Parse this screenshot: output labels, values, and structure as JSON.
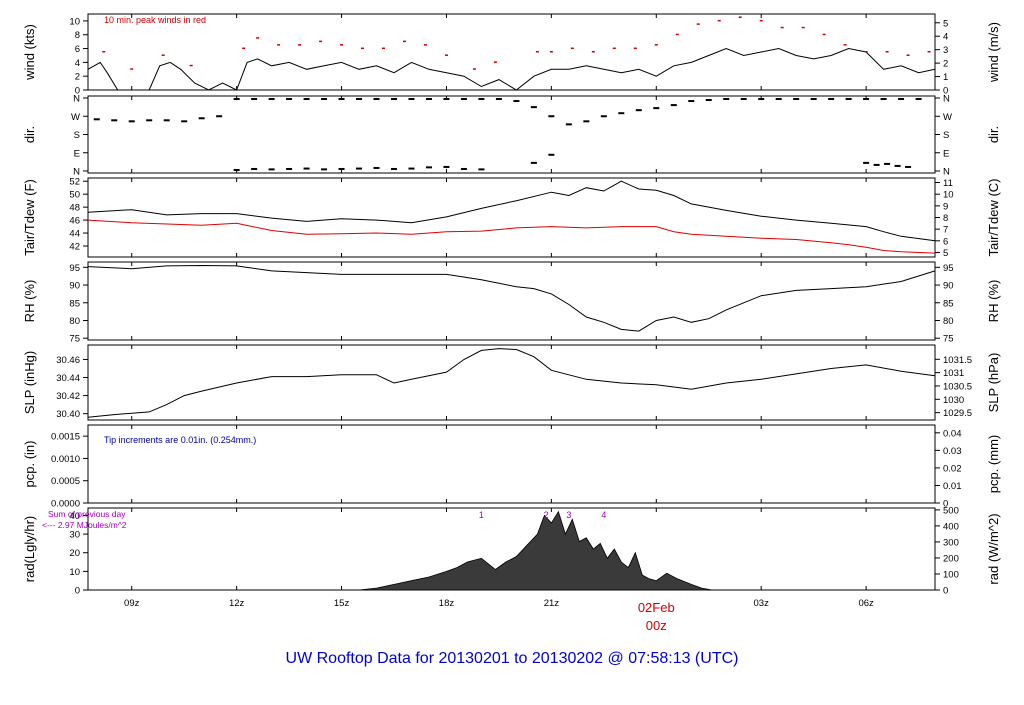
{
  "title": "UW Rooftop Data for 20130201  to  20130202 @ 07:58:13  (UTC)",
  "colors": {
    "axis": "#000000",
    "wind_peak": "#cc0000",
    "dewpoint": "#e00000",
    "note_blue": "#00009c",
    "note_purple": "#a000c0",
    "title_blue": "#0000d0",
    "date_marker": "#d00000"
  },
  "time_axis": {
    "start_hour": 7.75,
    "end_hour": 31.97,
    "ticks": [
      {
        "hour": 9,
        "label": "09z"
      },
      {
        "hour": 12,
        "label": "12z"
      },
      {
        "hour": 15,
        "label": "15z"
      },
      {
        "hour": 18,
        "label": "18z"
      },
      {
        "hour": 21,
        "label": "21z"
      },
      {
        "hour": 24,
        "label": ""
      },
      {
        "hour": 27,
        "label": "03z"
      },
      {
        "hour": 30,
        "label": "06z"
      }
    ],
    "date_marker": {
      "hour": 24,
      "date": "02Feb",
      "label": "00z"
    }
  },
  "chart_data": [
    {
      "type": "line",
      "panel": "wind",
      "ylabel_left": "wind (kts)",
      "ylabel_right": "wind (m/s)",
      "ylim": [
        0,
        11
      ],
      "ticks_left": [
        "0",
        "2",
        "4",
        "6",
        "8",
        "10"
      ],
      "ticks_right": [
        "0",
        "1",
        "2",
        "3",
        "4",
        "5"
      ],
      "right_conversion": 0.514,
      "annotation": "10 min. peak winds in red",
      "series": [
        {
          "name": "wind",
          "x": [
            7.75,
            8.1,
            8.3,
            8.6,
            8.9,
            9.2,
            9.5,
            9.8,
            10.1,
            10.4,
            10.8,
            11.2,
            11.6,
            12.0,
            12.3,
            12.6,
            13.0,
            13.5,
            14.0,
            14.5,
            15.0,
            15.5,
            16.0,
            16.5,
            17.0,
            17.5,
            18.0,
            18.5,
            19.0,
            19.5,
            20.0,
            20.5,
            21.0,
            21.5,
            22.0,
            22.5,
            23.0,
            23.5,
            24.0,
            24.5,
            25.0,
            25.5,
            26.0,
            26.5,
            27.0,
            27.5,
            28.0,
            28.5,
            29.0,
            29.5,
            30.0,
            30.5,
            31.0,
            31.5,
            31.97
          ],
          "y": [
            3,
            4,
            2.5,
            0,
            0,
            0,
            0,
            3.5,
            4,
            3,
            1,
            0,
            1,
            0,
            4,
            4.5,
            3.5,
            4,
            3,
            3.5,
            4,
            3,
            3.5,
            2.5,
            4,
            3,
            2.5,
            2,
            0.5,
            1.5,
            0,
            2,
            3,
            3,
            3.5,
            3,
            2.5,
            3,
            2,
            3.5,
            4,
            5,
            6,
            5,
            5.5,
            6,
            5,
            4.5,
            5,
            6,
            5.5,
            3,
            3.5,
            2.5,
            3
          ]
        },
        {
          "name": "peak",
          "x": [
            8.2,
            9.0,
            9.9,
            10.7,
            12.2,
            12.6,
            13.2,
            13.8,
            14.4,
            15.0,
            15.6,
            16.2,
            16.8,
            17.4,
            18.0,
            18.8,
            19.4,
            20.6,
            21.0,
            21.6,
            22.2,
            22.8,
            23.4,
            24.0,
            24.6,
            25.2,
            25.8,
            26.4,
            27.0,
            27.6,
            28.2,
            28.8,
            29.4,
            30.0,
            30.6,
            31.2,
            31.8
          ],
          "y": [
            5.5,
            3,
            5,
            3.5,
            6,
            7.5,
            6.5,
            6.5,
            7,
            6.5,
            6,
            6,
            7,
            6.5,
            5,
            3,
            4,
            5.5,
            5.5,
            6,
            5.5,
            6,
            6,
            6.5,
            8,
            9.5,
            10,
            10.5,
            10,
            9,
            9,
            8,
            6.5,
            5.5,
            5.5,
            5,
            5.5
          ]
        }
      ]
    },
    {
      "type": "scatter",
      "panel": "direction",
      "ylabel_left": "dir.",
      "ylabel_right": "dir.",
      "ticks_left": [
        "N",
        "E",
        "S",
        "W",
        "N"
      ],
      "ticks_right": [
        "N",
        "E",
        "S",
        "W",
        "N"
      ],
      "ylim": [
        0,
        360
      ],
      "x": [
        8.0,
        8.5,
        9.0,
        9.5,
        10.0,
        10.5,
        11.0,
        11.5,
        12.0,
        12.5,
        13.0,
        13.5,
        14.0,
        14.5,
        15.0,
        15.5,
        16.0,
        16.5,
        17.0,
        17.5,
        18.0,
        18.5,
        19.0,
        19.5,
        20.0,
        20.5,
        21.0,
        21.5,
        22.0,
        22.5,
        23.0,
        23.5,
        24.0,
        24.5,
        25.0,
        25.5,
        26.0,
        26.5,
        27.0,
        27.5,
        28.0,
        28.5,
        29.0,
        29.5,
        30.0,
        30.5,
        31.0,
        31.5
      ],
      "y": [
        255,
        250,
        245,
        250,
        250,
        245,
        260,
        270,
        355,
        355,
        355,
        355,
        355,
        355,
        355,
        355,
        355,
        355,
        355,
        355,
        355,
        355,
        355,
        355,
        345,
        315,
        270,
        230,
        245,
        270,
        285,
        300,
        310,
        325,
        345,
        350,
        355,
        355,
        355,
        355,
        355,
        355,
        355,
        355,
        355,
        355,
        355,
        355
      ],
      "x2": [
        12.0,
        12.5,
        13.0,
        13.5,
        14.0,
        14.5,
        15.0,
        15.5,
        16.0,
        16.5,
        17.0,
        17.5,
        18.0,
        18.5,
        19.0,
        20.5,
        21.0,
        30.0,
        30.3,
        30.6,
        30.9,
        31.2
      ],
      "y2": [
        5,
        10,
        8,
        10,
        12,
        8,
        10,
        12,
        15,
        10,
        12,
        18,
        20,
        10,
        8,
        40,
        80,
        40,
        30,
        35,
        25,
        20
      ]
    },
    {
      "type": "line",
      "panel": "temperature",
      "ylabel_left": "Tair/Tdew (F)",
      "ylabel_right": "Tair/Tdew (C)",
      "ylim": [
        40.3,
        52.5
      ],
      "ticks_left": [
        "42",
        "44",
        "46",
        "48",
        "50",
        "52"
      ],
      "ticks_right": [
        "5",
        "6",
        "7",
        "8",
        "9",
        "10",
        "11"
      ],
      "series": [
        {
          "name": "Tair",
          "x": [
            7.75,
            9.0,
            10.0,
            11.0,
            12.0,
            13.0,
            14.0,
            15.0,
            16.0,
            17.0,
            18.0,
            19.0,
            20.0,
            21.0,
            21.5,
            22.0,
            22.5,
            23.0,
            23.5,
            24.0,
            24.5,
            25.0,
            26.0,
            27.0,
            28.0,
            29.0,
            30.0,
            30.5,
            31.0,
            31.97
          ],
          "y": [
            47.2,
            47.6,
            46.8,
            47.0,
            47.0,
            46.3,
            45.8,
            46.2,
            46.0,
            45.6,
            46.5,
            47.8,
            49.0,
            50.3,
            49.8,
            51.0,
            50.5,
            52.0,
            50.8,
            50.6,
            49.8,
            48.5,
            47.5,
            46.6,
            46.0,
            45.5,
            45.0,
            44.2,
            43.5,
            42.8
          ]
        },
        {
          "name": "Tdew",
          "x": [
            7.75,
            9.0,
            10.0,
            11.0,
            12.0,
            13.0,
            14.0,
            15.0,
            16.0,
            17.0,
            18.0,
            19.0,
            20.0,
            21.0,
            22.0,
            23.0,
            24.0,
            24.5,
            25.0,
            26.0,
            27.0,
            28.0,
            29.0,
            29.5,
            30.0,
            30.5,
            31.0,
            31.97
          ],
          "y": [
            46.0,
            45.6,
            45.4,
            45.2,
            45.5,
            44.4,
            43.8,
            43.9,
            44.0,
            43.8,
            44.2,
            44.3,
            44.8,
            45.0,
            44.8,
            45.0,
            45.0,
            44.2,
            43.8,
            43.5,
            43.2,
            43.0,
            42.5,
            42.2,
            41.8,
            41.3,
            41.1,
            40.9
          ]
        }
      ]
    },
    {
      "type": "line",
      "panel": "rh",
      "ylabel_left": "RH (%)",
      "ylabel_right": "RH (%)",
      "ylim": [
        74.5,
        96.5
      ],
      "ticks_left": [
        "75",
        "80",
        "85",
        "90",
        "95"
      ],
      "ticks_right": [
        "75",
        "80",
        "85",
        "90",
        "95"
      ],
      "series": [
        {
          "name": "RH",
          "x": [
            7.75,
            9.0,
            10.0,
            11.0,
            12.0,
            13.0,
            14.0,
            15.0,
            16.0,
            17.0,
            18.0,
            19.0,
            20.0,
            20.5,
            21.0,
            21.5,
            22.0,
            22.5,
            23.0,
            23.5,
            24.0,
            24.5,
            25.0,
            25.5,
            26.0,
            27.0,
            28.0,
            29.0,
            30.0,
            31.0,
            31.97
          ],
          "y": [
            95.2,
            94.6,
            95.4,
            95.5,
            95.4,
            94.0,
            93.5,
            93.0,
            93.0,
            93.0,
            93.0,
            91.5,
            89.5,
            89.0,
            87.5,
            84.5,
            81.0,
            79.5,
            77.5,
            77.0,
            80.0,
            81.0,
            79.5,
            80.5,
            83.0,
            87.0,
            88.5,
            89.0,
            89.5,
            91.0,
            94.0
          ]
        }
      ]
    },
    {
      "type": "line",
      "panel": "pressure",
      "ylabel_left": "SLP (inHg)",
      "ylabel_right": "SLP (hPa)",
      "ylim": [
        30.393,
        30.476
      ],
      "ticks_left": [
        "30.40",
        "30.42",
        "30.44",
        "30.46"
      ],
      "ticks_right": [
        "1029.5",
        "1030",
        "1030.5",
        "1031",
        "1031.5"
      ],
      "series": [
        {
          "name": "SLP",
          "x": [
            7.75,
            8.5,
            9.5,
            10.0,
            10.5,
            11.0,
            12.0,
            13.0,
            14.0,
            15.0,
            16.0,
            16.5,
            17.0,
            18.0,
            18.5,
            19.0,
            19.5,
            20.0,
            20.5,
            21.0,
            22.0,
            23.0,
            24.0,
            25.0,
            26.0,
            27.0,
            28.0,
            29.0,
            30.0,
            31.0,
            31.97
          ],
          "y": [
            30.396,
            30.399,
            30.402,
            30.41,
            30.42,
            30.425,
            30.434,
            30.441,
            30.441,
            30.443,
            30.443,
            30.434,
            30.438,
            30.446,
            30.46,
            30.47,
            30.472,
            30.471,
            30.463,
            30.448,
            30.438,
            30.434,
            30.432,
            30.427,
            30.434,
            30.438,
            30.444,
            30.45,
            30.454,
            30.447,
            30.442
          ]
        }
      ]
    },
    {
      "type": "line",
      "panel": "precipitation",
      "ylabel_left": "pcp. (in)",
      "ylabel_right": "pcp. (mm)",
      "ylim": [
        0,
        0.00175
      ],
      "ticks_left": [
        "0.0000",
        "0.0005",
        "0.0010",
        "0.0015"
      ],
      "ticks_right": [
        "0",
        "0.01",
        "0.02",
        "0.03",
        "0.04"
      ],
      "annotation": "Tip increments are 0.01in. (0.254mm.)",
      "series": [
        {
          "name": "pcp",
          "x": [
            7.75,
            31.97
          ],
          "y": [
            0,
            0
          ]
        }
      ]
    },
    {
      "type": "area",
      "panel": "radiation",
      "ylabel_left": "rad(Lgly/hr)",
      "ylabel_right": "rad (W/m^2)",
      "ylim": [
        0,
        44
      ],
      "ticks_left": [
        "0",
        "10",
        "20",
        "30",
        "40"
      ],
      "ticks_right": [
        "0",
        "100",
        "200",
        "300",
        "400",
        "500"
      ],
      "annotation_1": "Sum of previous day",
      "annotation_2": "<--- 2.97 MJoules/m^2",
      "markers": [
        {
          "hour": 19.0,
          "label": "1"
        },
        {
          "hour": 20.85,
          "label": "2"
        },
        {
          "hour": 21.5,
          "label": "3"
        },
        {
          "hour": 22.5,
          "label": "4"
        }
      ],
      "series": [
        {
          "name": "rad",
          "x": [
            7.75,
            15.5,
            16.0,
            16.5,
            17.0,
            17.5,
            18.0,
            18.3,
            18.6,
            19.0,
            19.4,
            19.7,
            20.0,
            20.3,
            20.6,
            20.8,
            21.0,
            21.2,
            21.4,
            21.6,
            21.8,
            22.0,
            22.2,
            22.4,
            22.6,
            22.8,
            23.0,
            23.2,
            23.4,
            23.6,
            23.8,
            24.0,
            24.3,
            24.6,
            25.0,
            25.3,
            25.6,
            31.97
          ],
          "y": [
            0,
            0,
            1,
            3,
            5,
            7,
            10,
            12,
            15,
            17,
            11,
            15,
            18,
            24,
            30,
            40,
            36,
            42,
            30,
            38,
            26,
            28,
            22,
            25,
            17,
            22,
            15,
            12,
            20,
            8,
            6,
            5,
            9,
            6,
            3,
            1,
            0,
            0
          ]
        }
      ]
    }
  ]
}
